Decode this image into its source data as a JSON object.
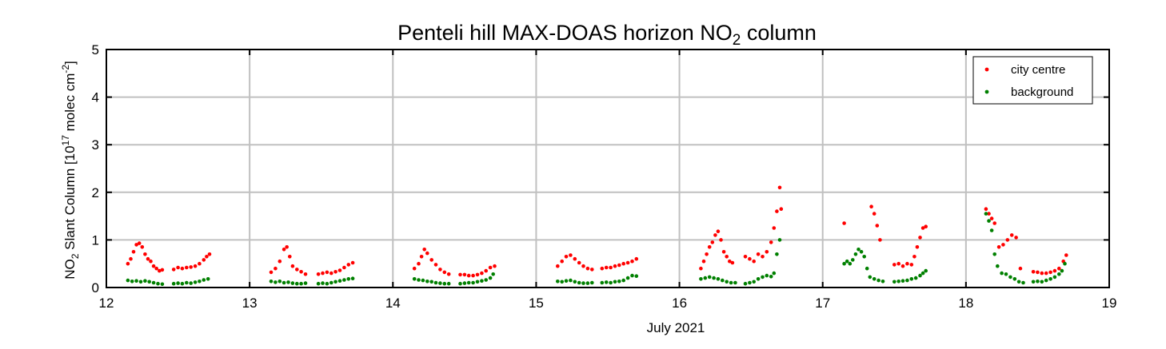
{
  "chart_data": {
    "type": "scatter",
    "title_main": "Penteli hill MAX-DOAS horizon NO",
    "title_sub": "2",
    "title_rest": " column",
    "xlabel": "July 2021",
    "ylabel_a": "NO",
    "ylabel_sub": "2",
    "ylabel_b": " Slant Column [10",
    "ylabel_sup": "17",
    "ylabel_c": " molec cm",
    "ylabel_sup2": "-2",
    "ylabel_d": "]",
    "xlim": [
      12,
      19
    ],
    "ylim": [
      0,
      5
    ],
    "x_ticks": [
      12,
      13,
      14,
      15,
      16,
      17,
      18,
      19
    ],
    "y_ticks": [
      0,
      1,
      2,
      3,
      4,
      5
    ],
    "grid": true,
    "legend_position": "top-right",
    "series": [
      {
        "name": "city centre",
        "color": "#ff0000",
        "points": [
          [
            12.15,
            0.5
          ],
          [
            12.17,
            0.6
          ],
          [
            12.19,
            0.75
          ],
          [
            12.21,
            0.9
          ],
          [
            12.23,
            0.93
          ],
          [
            12.25,
            0.85
          ],
          [
            12.27,
            0.7
          ],
          [
            12.29,
            0.6
          ],
          [
            12.31,
            0.55
          ],
          [
            12.33,
            0.45
          ],
          [
            12.35,
            0.4
          ],
          [
            12.37,
            0.35
          ],
          [
            12.39,
            0.37
          ],
          [
            12.47,
            0.38
          ],
          [
            12.5,
            0.42
          ],
          [
            12.53,
            0.4
          ],
          [
            12.56,
            0.42
          ],
          [
            12.59,
            0.43
          ],
          [
            12.62,
            0.45
          ],
          [
            12.65,
            0.5
          ],
          [
            12.68,
            0.58
          ],
          [
            12.7,
            0.65
          ],
          [
            12.72,
            0.7
          ],
          [
            13.15,
            0.32
          ],
          [
            13.18,
            0.4
          ],
          [
            13.21,
            0.55
          ],
          [
            13.24,
            0.8
          ],
          [
            13.26,
            0.85
          ],
          [
            13.28,
            0.65
          ],
          [
            13.3,
            0.45
          ],
          [
            13.33,
            0.38
          ],
          [
            13.36,
            0.33
          ],
          [
            13.39,
            0.28
          ],
          [
            13.48,
            0.28
          ],
          [
            13.51,
            0.3
          ],
          [
            13.54,
            0.32
          ],
          [
            13.57,
            0.3
          ],
          [
            13.6,
            0.33
          ],
          [
            13.63,
            0.36
          ],
          [
            13.66,
            0.42
          ],
          [
            13.69,
            0.48
          ],
          [
            13.72,
            0.52
          ],
          [
            14.15,
            0.4
          ],
          [
            14.18,
            0.5
          ],
          [
            14.2,
            0.65
          ],
          [
            14.22,
            0.8
          ],
          [
            14.24,
            0.72
          ],
          [
            14.27,
            0.58
          ],
          [
            14.3,
            0.48
          ],
          [
            14.33,
            0.38
          ],
          [
            14.36,
            0.32
          ],
          [
            14.39,
            0.28
          ],
          [
            14.47,
            0.27
          ],
          [
            14.5,
            0.27
          ],
          [
            14.53,
            0.25
          ],
          [
            14.56,
            0.25
          ],
          [
            14.59,
            0.27
          ],
          [
            14.62,
            0.3
          ],
          [
            14.65,
            0.35
          ],
          [
            14.68,
            0.42
          ],
          [
            14.71,
            0.45
          ],
          [
            15.15,
            0.45
          ],
          [
            15.18,
            0.55
          ],
          [
            15.21,
            0.65
          ],
          [
            15.24,
            0.68
          ],
          [
            15.27,
            0.6
          ],
          [
            15.3,
            0.52
          ],
          [
            15.33,
            0.45
          ],
          [
            15.36,
            0.4
          ],
          [
            15.39,
            0.38
          ],
          [
            15.46,
            0.4
          ],
          [
            15.49,
            0.42
          ],
          [
            15.52,
            0.42
          ],
          [
            15.55,
            0.45
          ],
          [
            15.58,
            0.47
          ],
          [
            15.61,
            0.5
          ],
          [
            15.64,
            0.52
          ],
          [
            15.67,
            0.55
          ],
          [
            15.7,
            0.6
          ],
          [
            16.15,
            0.4
          ],
          [
            16.17,
            0.55
          ],
          [
            16.19,
            0.7
          ],
          [
            16.21,
            0.85
          ],
          [
            16.23,
            0.95
          ],
          [
            16.25,
            1.1
          ],
          [
            16.27,
            1.18
          ],
          [
            16.29,
            1.0
          ],
          [
            16.31,
            0.75
          ],
          [
            16.33,
            0.65
          ],
          [
            16.35,
            0.55
          ],
          [
            16.37,
            0.52
          ],
          [
            16.46,
            0.65
          ],
          [
            16.49,
            0.6
          ],
          [
            16.52,
            0.55
          ],
          [
            16.55,
            0.7
          ],
          [
            16.58,
            0.65
          ],
          [
            16.61,
            0.75
          ],
          [
            16.64,
            0.95
          ],
          [
            16.66,
            1.25
          ],
          [
            16.68,
            1.6
          ],
          [
            16.7,
            2.1
          ],
          [
            16.71,
            1.65
          ],
          [
            17.15,
            1.35
          ],
          [
            17.34,
            1.7
          ],
          [
            17.36,
            1.55
          ],
          [
            17.38,
            1.3
          ],
          [
            17.4,
            1.0
          ],
          [
            17.5,
            0.48
          ],
          [
            17.53,
            0.5
          ],
          [
            17.56,
            0.45
          ],
          [
            17.59,
            0.5
          ],
          [
            17.62,
            0.48
          ],
          [
            17.64,
            0.65
          ],
          [
            17.66,
            0.85
          ],
          [
            17.68,
            1.05
          ],
          [
            17.7,
            1.25
          ],
          [
            17.72,
            1.28
          ],
          [
            18.14,
            1.65
          ],
          [
            18.16,
            1.55
          ],
          [
            18.18,
            1.45
          ],
          [
            18.2,
            1.35
          ],
          [
            18.23,
            0.85
          ],
          [
            18.26,
            0.9
          ],
          [
            18.29,
            1.0
          ],
          [
            18.32,
            1.1
          ],
          [
            18.35,
            1.05
          ],
          [
            18.38,
            0.4
          ],
          [
            18.47,
            0.33
          ],
          [
            18.5,
            0.32
          ],
          [
            18.53,
            0.3
          ],
          [
            18.56,
            0.3
          ],
          [
            18.59,
            0.32
          ],
          [
            18.62,
            0.35
          ],
          [
            18.65,
            0.4
          ],
          [
            18.68,
            0.55
          ],
          [
            18.7,
            0.68
          ]
        ]
      },
      {
        "name": "background",
        "color": "#008000",
        "points": [
          [
            12.15,
            0.15
          ],
          [
            12.18,
            0.13
          ],
          [
            12.21,
            0.14
          ],
          [
            12.24,
            0.12
          ],
          [
            12.27,
            0.14
          ],
          [
            12.3,
            0.12
          ],
          [
            12.33,
            0.1
          ],
          [
            12.36,
            0.08
          ],
          [
            12.39,
            0.07
          ],
          [
            12.47,
            0.08
          ],
          [
            12.5,
            0.09
          ],
          [
            12.53,
            0.08
          ],
          [
            12.56,
            0.1
          ],
          [
            12.59,
            0.09
          ],
          [
            12.62,
            0.11
          ],
          [
            12.65,
            0.13
          ],
          [
            12.68,
            0.16
          ],
          [
            12.71,
            0.18
          ],
          [
            13.15,
            0.13
          ],
          [
            13.18,
            0.11
          ],
          [
            13.21,
            0.13
          ],
          [
            13.24,
            0.1
          ],
          [
            13.27,
            0.11
          ],
          [
            13.3,
            0.09
          ],
          [
            13.33,
            0.08
          ],
          [
            13.36,
            0.08
          ],
          [
            13.39,
            0.09
          ],
          [
            13.48,
            0.08
          ],
          [
            13.51,
            0.09
          ],
          [
            13.54,
            0.08
          ],
          [
            13.57,
            0.1
          ],
          [
            13.6,
            0.12
          ],
          [
            13.63,
            0.14
          ],
          [
            13.66,
            0.16
          ],
          [
            13.69,
            0.18
          ],
          [
            13.72,
            0.19
          ],
          [
            14.15,
            0.18
          ],
          [
            14.18,
            0.16
          ],
          [
            14.21,
            0.15
          ],
          [
            14.24,
            0.13
          ],
          [
            14.27,
            0.12
          ],
          [
            14.3,
            0.1
          ],
          [
            14.33,
            0.09
          ],
          [
            14.36,
            0.08
          ],
          [
            14.39,
            0.08
          ],
          [
            14.47,
            0.08
          ],
          [
            14.5,
            0.09
          ],
          [
            14.53,
            0.1
          ],
          [
            14.56,
            0.1
          ],
          [
            14.59,
            0.12
          ],
          [
            14.62,
            0.14
          ],
          [
            14.65,
            0.16
          ],
          [
            14.68,
            0.2
          ],
          [
            14.7,
            0.28
          ],
          [
            15.15,
            0.13
          ],
          [
            15.18,
            0.12
          ],
          [
            15.21,
            0.14
          ],
          [
            15.24,
            0.15
          ],
          [
            15.27,
            0.12
          ],
          [
            15.3,
            0.1
          ],
          [
            15.33,
            0.09
          ],
          [
            15.36,
            0.09
          ],
          [
            15.39,
            0.1
          ],
          [
            15.46,
            0.1
          ],
          [
            15.49,
            0.11
          ],
          [
            15.52,
            0.1
          ],
          [
            15.55,
            0.12
          ],
          [
            15.58,
            0.13
          ],
          [
            15.61,
            0.15
          ],
          [
            15.64,
            0.2
          ],
          [
            15.67,
            0.25
          ],
          [
            15.7,
            0.24
          ],
          [
            16.15,
            0.18
          ],
          [
            16.18,
            0.2
          ],
          [
            16.21,
            0.22
          ],
          [
            16.24,
            0.2
          ],
          [
            16.27,
            0.18
          ],
          [
            16.3,
            0.15
          ],
          [
            16.33,
            0.12
          ],
          [
            16.36,
            0.1
          ],
          [
            16.39,
            0.1
          ],
          [
            16.46,
            0.08
          ],
          [
            16.49,
            0.1
          ],
          [
            16.52,
            0.12
          ],
          [
            16.55,
            0.18
          ],
          [
            16.58,
            0.22
          ],
          [
            16.61,
            0.25
          ],
          [
            16.64,
            0.23
          ],
          [
            16.66,
            0.3
          ],
          [
            16.68,
            0.7
          ],
          [
            16.7,
            1.0
          ],
          [
            17.15,
            0.5
          ],
          [
            17.17,
            0.55
          ],
          [
            17.19,
            0.5
          ],
          [
            17.21,
            0.58
          ],
          [
            17.23,
            0.7
          ],
          [
            17.25,
            0.8
          ],
          [
            17.27,
            0.75
          ],
          [
            17.29,
            0.65
          ],
          [
            17.31,
            0.4
          ],
          [
            17.33,
            0.22
          ],
          [
            17.36,
            0.18
          ],
          [
            17.39,
            0.15
          ],
          [
            17.42,
            0.13
          ],
          [
            17.5,
            0.12
          ],
          [
            17.53,
            0.13
          ],
          [
            17.56,
            0.14
          ],
          [
            17.59,
            0.15
          ],
          [
            17.62,
            0.18
          ],
          [
            17.65,
            0.2
          ],
          [
            17.68,
            0.25
          ],
          [
            17.7,
            0.3
          ],
          [
            17.72,
            0.35
          ],
          [
            18.14,
            1.55
          ],
          [
            18.16,
            1.4
          ],
          [
            18.18,
            1.2
          ],
          [
            18.2,
            0.7
          ],
          [
            18.22,
            0.45
          ],
          [
            18.25,
            0.3
          ],
          [
            18.28,
            0.28
          ],
          [
            18.31,
            0.22
          ],
          [
            18.34,
            0.18
          ],
          [
            18.37,
            0.12
          ],
          [
            18.4,
            0.1
          ],
          [
            18.47,
            0.12
          ],
          [
            18.5,
            0.13
          ],
          [
            18.53,
            0.12
          ],
          [
            18.56,
            0.15
          ],
          [
            18.59,
            0.18
          ],
          [
            18.62,
            0.22
          ],
          [
            18.65,
            0.28
          ],
          [
            18.67,
            0.35
          ],
          [
            18.69,
            0.5
          ]
        ]
      }
    ]
  }
}
